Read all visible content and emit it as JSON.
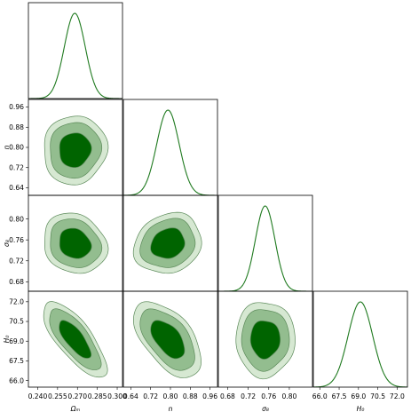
{
  "chart_data": {
    "type": "corner",
    "parameters": [
      {
        "id": "Om",
        "label": "Ωₘ",
        "range": [
          0.233,
          0.304
        ],
        "ticks": [
          "0.240",
          "0.255",
          "0.270",
          "0.285",
          "0.300"
        ],
        "mean": 0.268,
        "sigma": 0.0079
      },
      {
        "id": "n",
        "label": "n",
        "range": [
          0.61,
          0.99
        ],
        "ticks": [
          "0.64",
          "0.72",
          "0.80",
          "0.88",
          "0.96"
        ],
        "mean": 0.79,
        "sigma": 0.045
      },
      {
        "id": "s8",
        "label": "σ₈",
        "range": [
          0.662,
          0.845
        ],
        "ticks": [
          "0.68",
          "0.72",
          "0.76",
          "0.80"
        ],
        "mean": 0.753,
        "sigma": 0.019
      },
      {
        "id": "H0",
        "label": "H₀",
        "range": [
          65.5,
          72.8
        ],
        "ticks": [
          "66.0",
          "67.5",
          "69.0",
          "70.5",
          "72.0"
        ],
        "mean": 69.15,
        "sigma": 0.95
      }
    ],
    "correlations": {
      "n|Om": 0.05,
      "s8|Om": -0.15,
      "s8|n": 0.15,
      "H0|Om": -0.75,
      "H0|n": -0.55,
      "H0|s8": 0.0
    },
    "confidence_levels": [
      "68%",
      "95%",
      "99%"
    ],
    "colors": {
      "line": "#1f7a1f",
      "fill_inner": "#006400",
      "fill_mid": "#93bd8f",
      "fill_outer": "#d6e8d2",
      "contour_edge": "#5c8a5a"
    }
  }
}
